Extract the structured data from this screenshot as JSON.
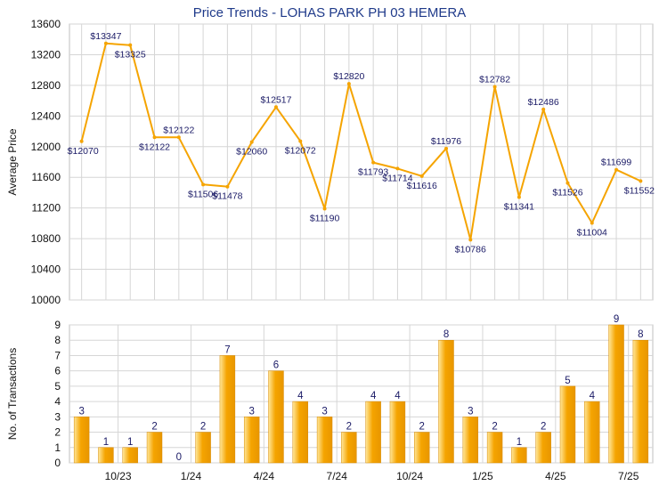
{
  "title": "Price Trends - LOHAS PARK PH 03 HEMERA",
  "colors": {
    "line": "#f5a400",
    "bar_light": "#ffe79a",
    "bar_dark": "#e89600",
    "grid": "#d6d6d6",
    "axis_text": "#111111",
    "label_text": "#1a1a66"
  },
  "chart_data": [
    {
      "type": "line",
      "ylabel": "Average Price",
      "ylim": [
        10000,
        13600
      ],
      "yticks": [
        "10000",
        "10400",
        "10800",
        "11200",
        "11600",
        "12000",
        "12400",
        "12800",
        "13200",
        "13600"
      ],
      "grid": true,
      "series": [
        {
          "values": [
            12070,
            13347,
            13325,
            12122,
            12122,
            11506,
            11478,
            12060,
            12517,
            12072,
            11190,
            12820,
            11793,
            11714,
            11616,
            11976,
            10786,
            12782,
            11341,
            12486,
            11526,
            11004,
            11699,
            11552
          ],
          "labels": [
            "$12070",
            "$13347",
            "$13325",
            "$12122",
            "$12122",
            "$11506",
            "$11478",
            "$12060",
            "$12517",
            "$12072",
            "$11190",
            "$12820",
            "$11793",
            "$11714",
            "$11616",
            "$11976",
            "$10786",
            "$12782",
            "$11341",
            "$12486",
            "$11526",
            "$11004",
            "$11699",
            "$11552"
          ]
        }
      ]
    },
    {
      "type": "bar",
      "ylabel": "No. of Transactions",
      "ylim": [
        0,
        9
      ],
      "yticks": [
        "0",
        "1",
        "2",
        "3",
        "4",
        "5",
        "6",
        "7",
        "8",
        "9"
      ],
      "grid": true,
      "xticks": [
        "10/23",
        "1/24",
        "4/24",
        "7/24",
        "10/24",
        "1/25",
        "4/25",
        "7/25"
      ],
      "series": [
        {
          "values": [
            3,
            1,
            1,
            2,
            0,
            2,
            7,
            3,
            6,
            4,
            3,
            2,
            4,
            4,
            2,
            8,
            3,
            2,
            1,
            2,
            5,
            4,
            9,
            8
          ],
          "labels": [
            "3",
            "1",
            "1",
            "2",
            "0",
            "2",
            "7",
            "3",
            "6",
            "4",
            "3",
            "2",
            "4",
            "4",
            "2",
            "8",
            "3",
            "2",
            "1",
            "2",
            "5",
            "4",
            "9",
            "8"
          ]
        }
      ]
    }
  ]
}
